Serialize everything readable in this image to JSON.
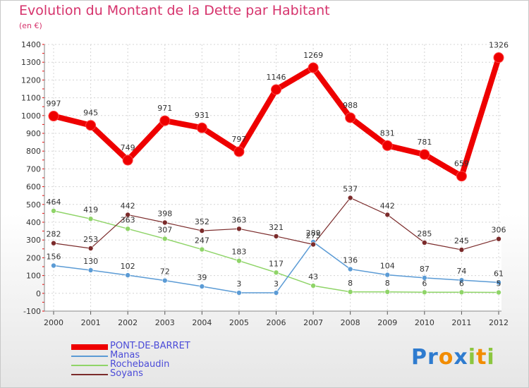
{
  "chart_data": {
    "type": "line",
    "title": "Evolution du Montant de la Dette par Habitant",
    "subtitle": "(en €)",
    "categories": [
      "2000",
      "2001",
      "2002",
      "2003",
      "2004",
      "2005",
      "2006",
      "2007",
      "2008",
      "2009",
      "2010",
      "2011",
      "2012"
    ],
    "y_ticks": [
      "-100",
      "0",
      "100",
      "200",
      "300",
      "400",
      "500",
      "600",
      "700",
      "800",
      "900",
      "1000",
      "1100",
      "1200",
      "1300",
      "1400"
    ],
    "ylim": [
      -100,
      1400
    ],
    "grid": true,
    "legend_position": "bottom-left",
    "series": [
      {
        "name": "PONT-DE-BARRET",
        "color": "#ee0000",
        "line_width": 8,
        "marker_radius": 7,
        "values": [
          997,
          945,
          749,
          971,
          931,
          797,
          1146,
          1269,
          988,
          831,
          781,
          659,
          1326
        ],
        "labels": [
          "997",
          "945",
          "749",
          "971",
          "931",
          "797",
          "1146",
          "1269",
          "988",
          "831",
          "781",
          "659",
          "1326"
        ]
      },
      {
        "name": "Manas",
        "color": "#5b9bd5",
        "line_width": 1.5,
        "marker_radius": 3.5,
        "values": [
          156,
          130,
          102,
          72,
          39,
          3,
          3,
          289,
          136,
          104,
          87,
          74,
          61
        ],
        "labels": [
          "156",
          "130",
          "102",
          "72",
          "39",
          "3",
          "3",
          "289",
          "136",
          "104",
          "87",
          "74",
          "61"
        ]
      },
      {
        "name": "Rochebaudin",
        "color": "#8fd468",
        "line_width": 1.5,
        "marker_radius": 3.5,
        "values": [
          464,
          419,
          363,
          307,
          247,
          183,
          117,
          43,
          8,
          8,
          6,
          6,
          5
        ],
        "labels": [
          "464",
          "419",
          "363",
          "307",
          "247",
          "183",
          "117",
          "43",
          "8",
          "8",
          "6",
          "6",
          "5"
        ]
      },
      {
        "name": "Soyans",
        "color": "#7b2b2b",
        "line_width": 1.2,
        "marker_radius": 3.5,
        "values": [
          282,
          253,
          442,
          398,
          352,
          363,
          321,
          275,
          537,
          442,
          285,
          245,
          306
        ],
        "labels": [
          "282",
          "253",
          "442",
          "398",
          "352",
          "363",
          "321",
          "275",
          "537",
          "442",
          "285",
          "245",
          "306"
        ]
      }
    ]
  },
  "logo": {
    "letters": [
      "P",
      "r",
      "o",
      "x",
      "i",
      "t",
      "i"
    ],
    "colors": [
      "#2e7bcf",
      "#2e7bcf",
      "#f28c00",
      "#2e7bcf",
      "#8cc63f",
      "#f28c00",
      "#8cc63f"
    ]
  }
}
